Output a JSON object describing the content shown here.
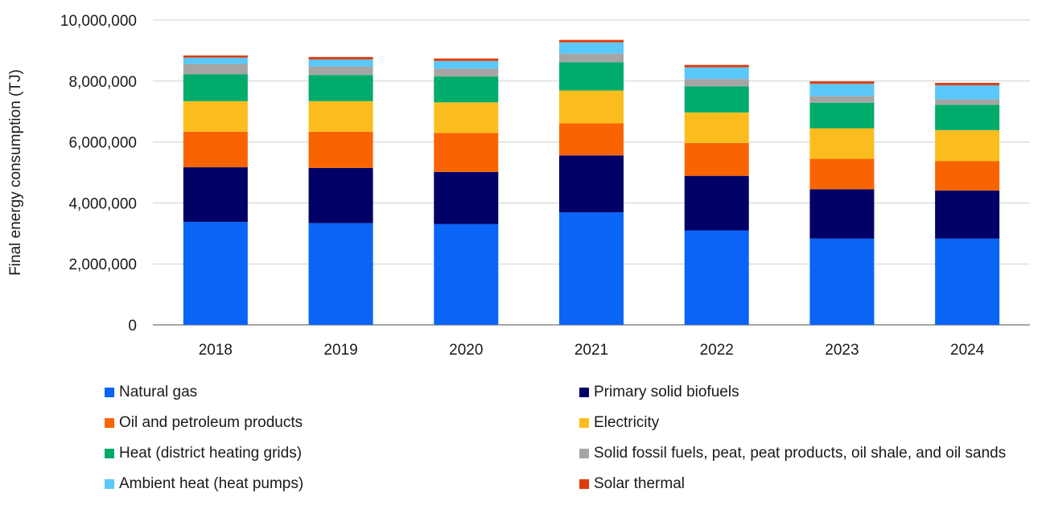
{
  "chart_data": {
    "type": "bar",
    "stacked": true,
    "categories": [
      "2018",
      "2019",
      "2020",
      "2021",
      "2022",
      "2023",
      "2024"
    ],
    "ylabel": "Final energy consumption (TJ)",
    "xlabel": "",
    "ylim": [
      0,
      10000000
    ],
    "yticks": [
      0,
      2000000,
      4000000,
      6000000,
      8000000,
      10000000
    ],
    "ytick_labels": [
      "0",
      "2,000,000",
      "4,000,000",
      "6,000,000",
      "8,000,000",
      "10,000,000"
    ],
    "grid": true,
    "legend_position": "bottom",
    "series": [
      {
        "name": "Natural gas",
        "color": "#0a64f5",
        "values": [
          3380000,
          3340000,
          3310000,
          3690000,
          3100000,
          2830000,
          2830000
        ]
      },
      {
        "name": "Primary solid biofuels",
        "color": "#000066",
        "values": [
          1790000,
          1810000,
          1710000,
          1870000,
          1790000,
          1620000,
          1580000
        ]
      },
      {
        "name": "Oil and petroleum products",
        "color": "#fa6400",
        "values": [
          1170000,
          1190000,
          1280000,
          1050000,
          1080000,
          1000000,
          960000
        ]
      },
      {
        "name": "Electricity",
        "color": "#fbbd1e",
        "values": [
          1000000,
          1000000,
          1000000,
          1080000,
          1000000,
          1000000,
          1020000
        ]
      },
      {
        "name": "Heat (district heating grids)",
        "color": "#00ab6b",
        "values": [
          880000,
          860000,
          850000,
          930000,
          860000,
          840000,
          830000
        ]
      },
      {
        "name": "Solid fossil fuels, peat, peat products, oil shale, and oil sands",
        "color": "#a5a5a5",
        "values": [
          340000,
          280000,
          260000,
          280000,
          240000,
          220000,
          180000
        ]
      },
      {
        "name": "Ambient heat (heat pumps)",
        "color": "#5ac8fa",
        "values": [
          210000,
          230000,
          250000,
          370000,
          380000,
          400000,
          460000
        ]
      },
      {
        "name": "Solar thermal",
        "color": "#e03c0f",
        "values": [
          70000,
          80000,
          80000,
          80000,
          80000,
          80000,
          80000
        ]
      }
    ]
  }
}
